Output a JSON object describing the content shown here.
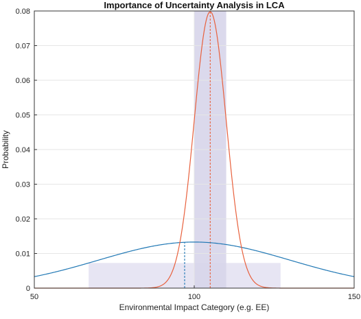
{
  "chart_data": {
    "type": "line",
    "title": "Importance of Uncertainty Analysis in LCA",
    "xlabel": "Environmental Impact Category (e.g. EE)",
    "ylabel": "Probability",
    "xlim": [
      50,
      150
    ],
    "ylim": [
      0,
      0.08
    ],
    "xticks": [
      "50",
      "100",
      "150"
    ],
    "yticks": [
      "0",
      "0.01",
      "0.02",
      "0.03",
      "0.04",
      "0.05",
      "0.06",
      "0.07",
      "0.08"
    ],
    "grid": true,
    "series": [
      {
        "kind": "normal",
        "mean": 100,
        "std": 30,
        "color": "#1f77b4",
        "marker_x": 97,
        "interval": [
          67,
          127
        ],
        "interval_color": "#e3e1f1"
      },
      {
        "kind": "normal",
        "mean": 105,
        "std": 5,
        "color": "#e8603c",
        "marker_x": 105,
        "interval": [
          100,
          110
        ],
        "interval_color": "#d7d5ea"
      }
    ]
  }
}
